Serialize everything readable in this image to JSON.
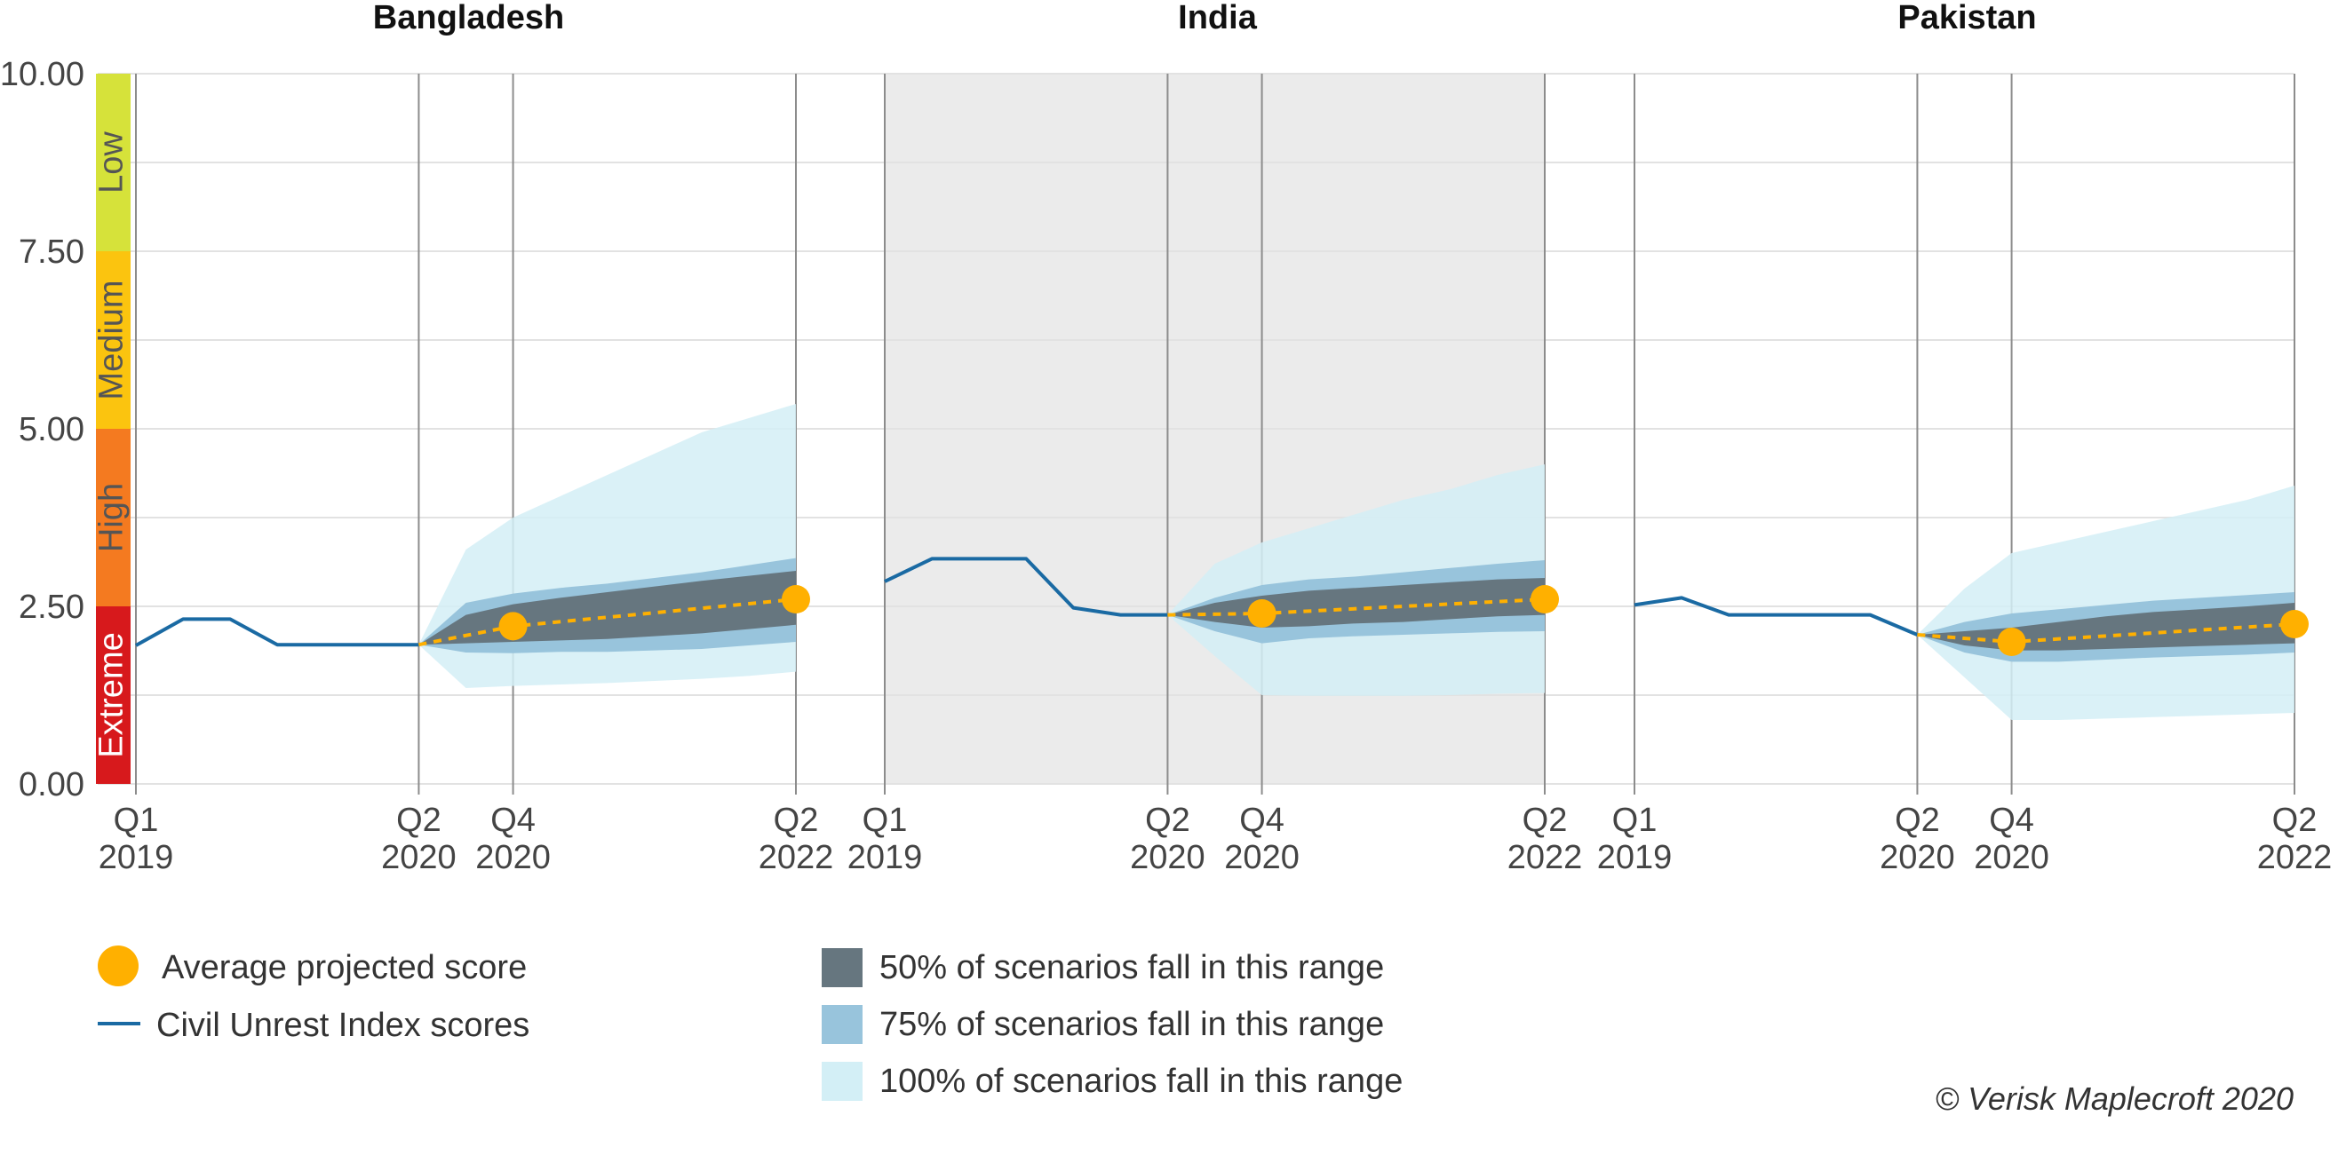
{
  "chart_data": {
    "type": "line",
    "ylim": [
      0,
      10
    ],
    "y_ticks": [
      "0.00",
      "2.50",
      "5.00",
      "7.50",
      "10.00"
    ],
    "grid": true,
    "x_ticks": [
      {
        "q": "Q1",
        "y": "2019"
      },
      {
        "q": "Q2",
        "y": "2020"
      },
      {
        "q": "Q4",
        "y": "2020"
      },
      {
        "q": "Q2",
        "y": "2022"
      }
    ],
    "risk_bands": [
      {
        "label": "Extreme",
        "from": 0,
        "to": 2.5,
        "color": "#d7191c",
        "text_color": "#ffffff"
      },
      {
        "label": "High",
        "from": 2.5,
        "to": 5,
        "color": "#f47a20",
        "text_color": "#555555"
      },
      {
        "label": "Medium",
        "from": 5,
        "to": 7.5,
        "color": "#fbc40f",
        "text_color": "#555555"
      },
      {
        "label": "Low",
        "from": 7.5,
        "to": 10,
        "color": "#d6e23a",
        "text_color": "#555555"
      }
    ],
    "colors": {
      "index_line": "#1a6aa3",
      "projection_dot": "#ffb000",
      "band_50": "#66767f",
      "band_75": "#98c4dc",
      "band_100": "#d3eff6",
      "highlight_panel": "#ebebeb"
    },
    "panels": [
      {
        "title": "Bangladesh",
        "highlight": false,
        "history": [
          [
            0,
            1.95
          ],
          [
            1,
            2.32
          ],
          [
            2,
            2.32
          ],
          [
            3,
            1.96
          ],
          [
            4,
            1.96
          ],
          [
            5,
            1.96
          ],
          [
            6,
            1.96
          ]
        ],
        "proj_x": [
          6,
          7,
          8,
          9,
          10,
          11,
          12,
          13,
          14
        ],
        "band100_hi": [
          1.96,
          3.3,
          3.75,
          4.05,
          4.35,
          4.65,
          4.95,
          5.15,
          5.35
        ],
        "band100_lo": [
          1.96,
          1.35,
          1.38,
          1.4,
          1.42,
          1.45,
          1.48,
          1.52,
          1.58
        ],
        "band75_hi": [
          1.96,
          2.55,
          2.68,
          2.76,
          2.82,
          2.9,
          2.98,
          3.08,
          3.18
        ],
        "band75_lo": [
          1.96,
          1.85,
          1.84,
          1.86,
          1.86,
          1.88,
          1.9,
          1.95,
          2.0
        ],
        "band50_hi": [
          1.96,
          2.38,
          2.53,
          2.62,
          2.7,
          2.78,
          2.86,
          2.93,
          3.0
        ],
        "band50_lo": [
          1.96,
          1.98,
          2.0,
          2.02,
          2.04,
          2.08,
          2.12,
          2.18,
          2.24
        ],
        "avg_line": [
          [
            6,
            1.96
          ],
          [
            8,
            2.22
          ],
          [
            14,
            2.6
          ]
        ],
        "avg_points": [
          [
            8,
            2.22
          ],
          [
            14,
            2.6
          ]
        ]
      },
      {
        "title": "India",
        "highlight": true,
        "history": [
          [
            0,
            2.85
          ],
          [
            1,
            3.17
          ],
          [
            2,
            3.17
          ],
          [
            3,
            3.17
          ],
          [
            4,
            2.48
          ],
          [
            5,
            2.38
          ],
          [
            6,
            2.38
          ]
        ],
        "proj_x": [
          6,
          7,
          8,
          9,
          10,
          11,
          12,
          13,
          14
        ],
        "band100_hi": [
          2.38,
          3.1,
          3.4,
          3.6,
          3.8,
          4.0,
          4.15,
          4.35,
          4.5
        ],
        "band100_lo": [
          2.38,
          1.8,
          1.25,
          1.24,
          1.24,
          1.24,
          1.25,
          1.27,
          1.28
        ],
        "band75_hi": [
          2.38,
          2.62,
          2.8,
          2.88,
          2.92,
          2.98,
          3.04,
          3.1,
          3.15
        ],
        "band75_lo": [
          2.38,
          2.15,
          1.98,
          2.05,
          2.08,
          2.1,
          2.12,
          2.14,
          2.15
        ],
        "band50_hi": [
          2.38,
          2.55,
          2.65,
          2.72,
          2.76,
          2.8,
          2.84,
          2.88,
          2.9
        ],
        "band50_lo": [
          2.38,
          2.28,
          2.2,
          2.22,
          2.26,
          2.28,
          2.32,
          2.36,
          2.38
        ],
        "avg_line": [
          [
            6,
            2.38
          ],
          [
            8,
            2.4
          ],
          [
            14,
            2.6
          ]
        ],
        "avg_points": [
          [
            8,
            2.4
          ],
          [
            14,
            2.6
          ]
        ]
      },
      {
        "title": "Pakistan",
        "highlight": false,
        "history": [
          [
            0,
            2.52
          ],
          [
            1,
            2.62
          ],
          [
            2,
            2.38
          ],
          [
            3,
            2.38
          ],
          [
            4,
            2.38
          ],
          [
            5,
            2.38
          ],
          [
            6,
            2.1
          ]
        ],
        "proj_x": [
          6,
          7,
          8,
          9,
          10,
          11,
          12,
          13,
          14
        ],
        "band100_hi": [
          2.1,
          2.75,
          3.25,
          3.4,
          3.55,
          3.7,
          3.85,
          4.0,
          4.2
        ],
        "band100_lo": [
          2.1,
          1.5,
          0.9,
          0.9,
          0.92,
          0.94,
          0.96,
          0.98,
          1.0
        ],
        "band75_hi": [
          2.1,
          2.28,
          2.4,
          2.46,
          2.52,
          2.58,
          2.62,
          2.66,
          2.7
        ],
        "band75_lo": [
          2.1,
          1.85,
          1.72,
          1.72,
          1.75,
          1.78,
          1.8,
          1.82,
          1.85
        ],
        "band50_hi": [
          2.1,
          2.15,
          2.2,
          2.28,
          2.36,
          2.42,
          2.46,
          2.5,
          2.55
        ],
        "band50_lo": [
          2.1,
          1.95,
          1.88,
          1.88,
          1.9,
          1.92,
          1.94,
          1.96,
          1.98
        ],
        "avg_line": [
          [
            6,
            2.1
          ],
          [
            8,
            2.0
          ],
          [
            14,
            2.25
          ]
        ],
        "avg_points": [
          [
            8,
            2.0
          ],
          [
            14,
            2.25
          ]
        ]
      }
    ],
    "legend": {
      "avg": "Average projected score",
      "index": "Civil Unrest Index scores",
      "r50": "50% of scenarios fall in this range",
      "r75": "75% of scenarios fall in this range",
      "r100": "100% of scenarios fall in this range"
    },
    "copyright": "© Verisk Maplecroft 2020"
  }
}
